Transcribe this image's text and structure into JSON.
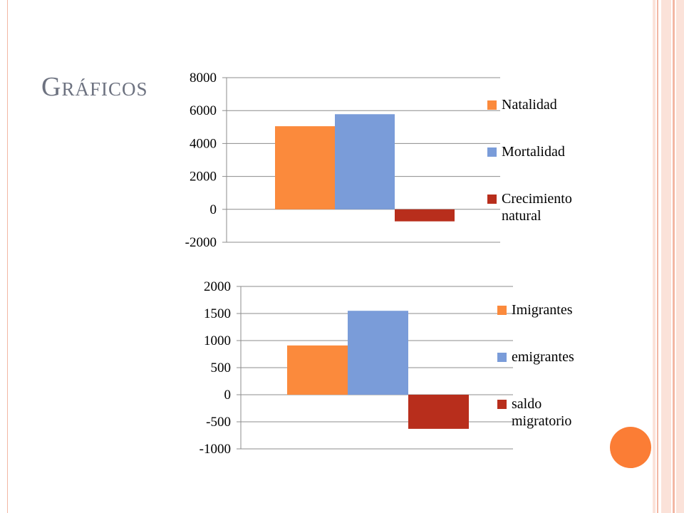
{
  "slide": {
    "title": "Gráficos"
  },
  "theme": {
    "accent_orange": "#fb7d35",
    "frame_pink": "#f3b7a4",
    "frame_light": "#fbe2d9",
    "title_color": "#6d7280"
  },
  "chart_data": [
    {
      "type": "bar",
      "categories": [
        ""
      ],
      "series": [
        {
          "name": "Natalidad",
          "values": [
            5050
          ],
          "color": "#fb8a3c"
        },
        {
          "name": "Mortalidad",
          "values": [
            5780
          ],
          "color": "#7a9cd9"
        },
        {
          "name": "Crecimiento natural",
          "values": [
            -730
          ],
          "color": "#b82e1c"
        }
      ],
      "ylim": [
        -2000,
        8000
      ],
      "yticks": [
        "8000",
        "6000",
        "4000",
        "2000",
        "0",
        "-2000"
      ],
      "grid": true,
      "legend_position": "right"
    },
    {
      "type": "bar",
      "categories": [
        ""
      ],
      "series": [
        {
          "name": "Imigrantes",
          "values": [
            910
          ],
          "color": "#fb8a3c"
        },
        {
          "name": "emigrantes",
          "values": [
            1550
          ],
          "color": "#7a9cd9"
        },
        {
          "name": "saldo migratorio",
          "values": [
            -630
          ],
          "color": "#b82e1c"
        }
      ],
      "ylim": [
        -1000,
        2000
      ],
      "yticks": [
        "2000",
        "1500",
        "1000",
        "500",
        "0",
        "-500",
        "-1000"
      ],
      "grid": true,
      "legend_position": "right"
    }
  ]
}
